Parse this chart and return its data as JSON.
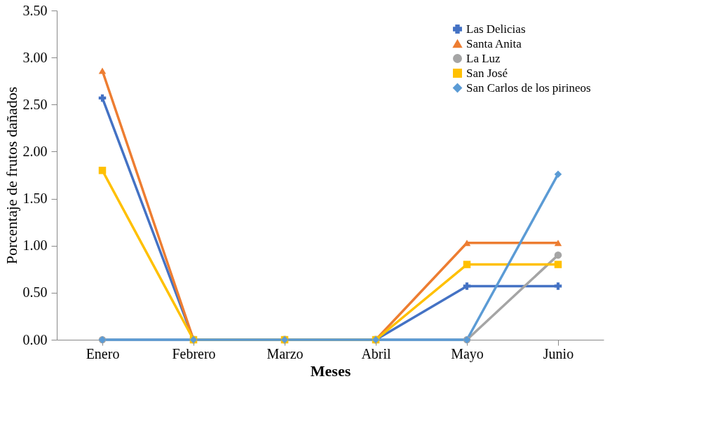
{
  "chart_data": {
    "type": "line",
    "xlabel": "Meses",
    "ylabel": "Porcentaje de frutos dañados",
    "categories": [
      "Enero",
      "Febrero",
      "Marzo",
      "Abril",
      "Mayo",
      "Junio"
    ],
    "series": [
      {
        "name": "Las Delicias",
        "color": "#4472c4",
        "marker": "cross",
        "values": [
          2.57,
          0,
          0,
          0,
          0.57,
          0.57
        ]
      },
      {
        "name": "Santa Anita",
        "color": "#ed7d31",
        "marker": "triangle",
        "values": [
          2.86,
          0,
          0,
          0,
          1.03,
          1.03
        ]
      },
      {
        "name": "La Luz",
        "color": "#a5a5a5",
        "marker": "circle",
        "values": [
          0,
          0,
          0,
          0,
          0,
          0.9
        ]
      },
      {
        "name": "San José",
        "color": "#ffc000",
        "marker": "square",
        "values": [
          1.8,
          0,
          0,
          0,
          0.8,
          0.8
        ]
      },
      {
        "name": "San Carlos de los pirineos",
        "color": "#5b9bd5",
        "marker": "diamond",
        "values": [
          0,
          0,
          0,
          0,
          0,
          1.76
        ]
      }
    ],
    "ylim": [
      0,
      3.5
    ],
    "yticks": [
      {
        "value": 0,
        "label": "0.00"
      },
      {
        "value": 0.5,
        "label": "0.50"
      },
      {
        "value": 1,
        "label": "1.00"
      },
      {
        "value": 1.5,
        "label": "1.50"
      },
      {
        "value": 2,
        "label": "2.00"
      },
      {
        "value": 2.5,
        "label": "2.50"
      },
      {
        "value": 3,
        "label": "3.00"
      },
      {
        "value": 3.5,
        "label": "3.50"
      }
    ],
    "grid": false,
    "legend": "top right",
    "line_style": "solid"
  }
}
